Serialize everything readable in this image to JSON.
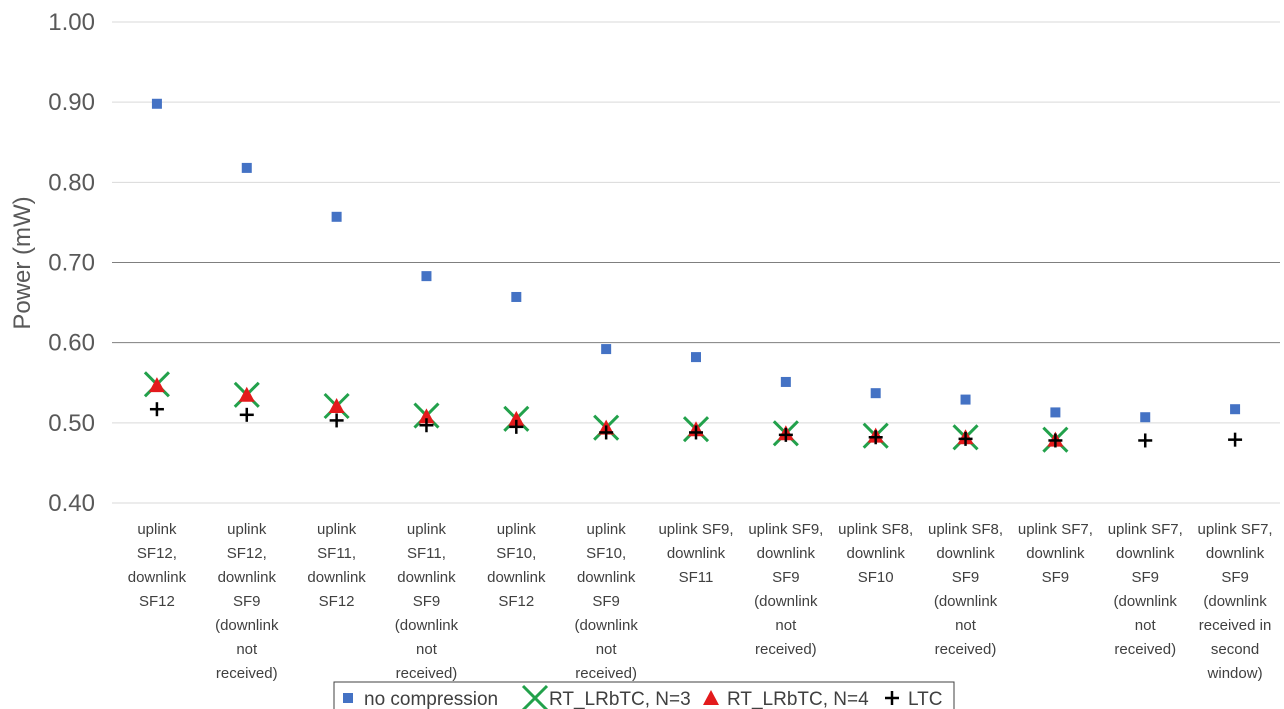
{
  "chart_data": {
    "type": "scatter",
    "ylabel": "Power (mW)",
    "ylim": [
      0.4,
      1.0
    ],
    "ytick_labels": [
      "0.40",
      "0.50",
      "0.60",
      "0.70",
      "0.80",
      "0.90",
      "1.00"
    ],
    "yticks": [
      0.4,
      0.5,
      0.6,
      0.7,
      0.8,
      0.9,
      1.0
    ],
    "grid": true,
    "legend_position": "bottom",
    "categories": [
      [
        "uplink",
        "SF12,",
        "downlink",
        "SF12"
      ],
      [
        "uplink",
        "SF12,",
        "downlink",
        "SF9",
        "(downlink",
        "not",
        "received)"
      ],
      [
        "uplink",
        "SF11,",
        "downlink",
        "SF12"
      ],
      [
        "uplink",
        "SF11,",
        "downlink",
        "SF9",
        "(downlink",
        "not",
        "received)"
      ],
      [
        "uplink",
        "SF10,",
        "downlink",
        "SF12"
      ],
      [
        "uplink",
        "SF10,",
        "downlink",
        "SF9",
        "(downlink",
        "not",
        "received)"
      ],
      [
        "uplink SF9,",
        "downlink",
        "SF11"
      ],
      [
        "uplink SF9,",
        "downlink",
        "SF9",
        "(downlink",
        "not",
        "received)"
      ],
      [
        "uplink SF8,",
        "downlink",
        "SF10"
      ],
      [
        "uplink SF8,",
        "downlink",
        "SF9",
        "(downlink",
        "not",
        "received)"
      ],
      [
        "uplink SF7,",
        "downlink",
        "SF9"
      ],
      [
        "uplink SF7,",
        "downlink",
        "SF9",
        "(downlink",
        "not",
        "received)"
      ],
      [
        "uplink SF7,",
        "downlink",
        "SF9",
        "(downlink",
        "received in",
        "second",
        "window)"
      ]
    ],
    "series": [
      {
        "name": "no compression",
        "marker": "square",
        "color": "#4472C4",
        "values": [
          0.898,
          0.818,
          0.757,
          0.683,
          0.657,
          0.592,
          0.582,
          0.551,
          0.537,
          0.529,
          0.513,
          0.507,
          0.517
        ]
      },
      {
        "name": "RT_LRbTC, N=3",
        "marker": "x",
        "color": "#22A14B",
        "values": [
          0.548,
          0.535,
          0.521,
          0.509,
          0.505,
          0.494,
          0.492,
          0.487,
          0.484,
          0.482,
          0.479,
          null,
          null
        ]
      },
      {
        "name": "RT_LRbTC, N=4",
        "marker": "triangle",
        "color": "#E31A1C",
        "values": [
          0.547,
          0.535,
          0.521,
          0.508,
          0.505,
          0.494,
          0.492,
          0.487,
          0.484,
          0.482,
          0.479,
          null,
          null
        ]
      },
      {
        "name": "LTC",
        "marker": "plus",
        "color": "#000000",
        "values": [
          0.517,
          0.51,
          0.503,
          0.497,
          0.495,
          0.488,
          0.488,
          0.485,
          0.482,
          0.48,
          0.478,
          0.478,
          0.479
        ]
      }
    ]
  }
}
